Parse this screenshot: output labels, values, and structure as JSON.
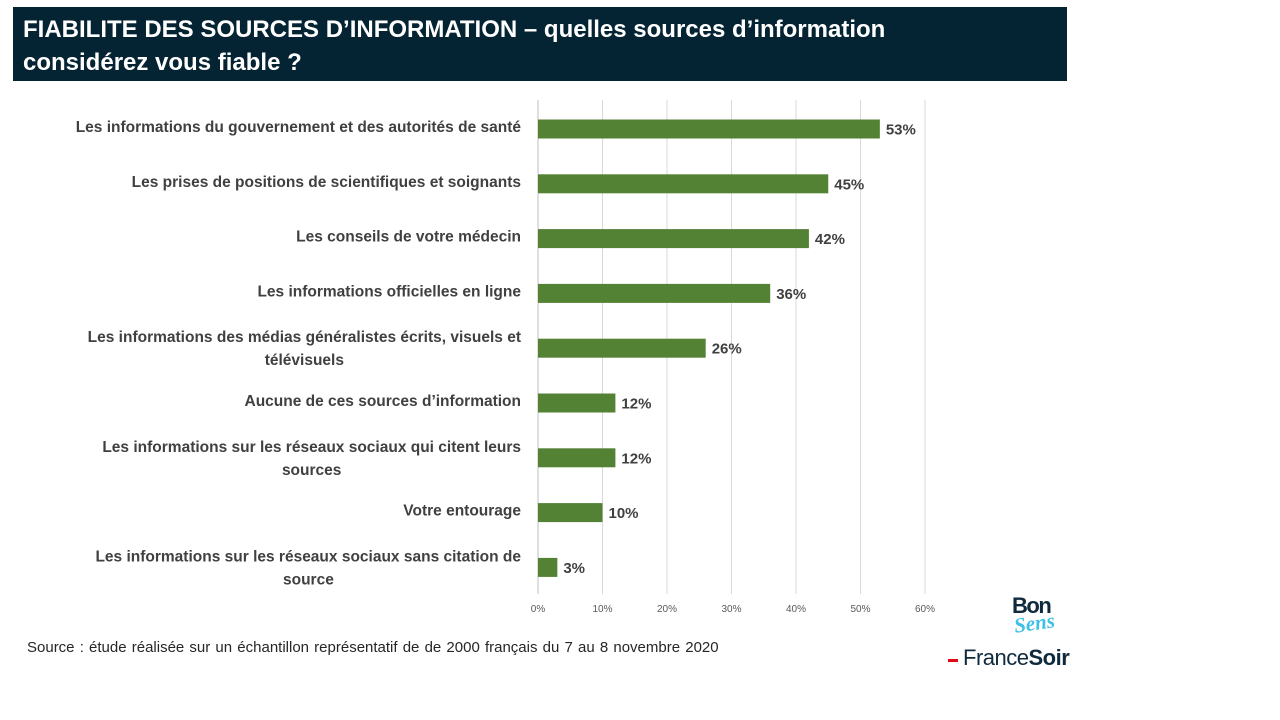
{
  "header": {
    "title_line1": "FIABILITE DES SOURCES D’INFORMATION – quelles sources d’information",
    "title_line2": "considérez vous fiable ?"
  },
  "chart_data": {
    "type": "bar",
    "orientation": "horizontal",
    "categories": [
      "Les informations du gouvernement et des autorités de santé",
      "Les prises de positions de scientifiques et soignants",
      "Les conseils de votre médecin",
      "Les informations officielles en ligne",
      "Les informations des médias généralistes écrits, visuels et télévisuels",
      "Aucune de ces sources d’information",
      "Les informations sur les réseaux sociaux qui citent leurs sources",
      "Votre entourage",
      "Les informations sur les réseaux sociaux sans citation de source"
    ],
    "category_lines": [
      [
        "Les informations du gouvernement et des autorités de santé"
      ],
      [
        "Les prises de positions de scientifiques et soignants"
      ],
      [
        "Les conseils de votre médecin"
      ],
      [
        "Les informations officielles en ligne"
      ],
      [
        "Les informations des médias généralistes écrits, visuels et",
        "télévisuels"
      ],
      [
        "Aucune de ces sources d’information"
      ],
      [
        "Les informations sur les réseaux sociaux qui citent leurs",
        "sources"
      ],
      [
        "Votre entourage"
      ],
      [
        "Les informations sur les réseaux sociaux sans citation de",
        "source"
      ]
    ],
    "values": [
      53,
      45,
      42,
      36,
      26,
      12,
      12,
      10,
      3
    ],
    "value_labels": [
      "53%",
      "45%",
      "42%",
      "36%",
      "26%",
      "12%",
      "12%",
      "10%",
      "3%"
    ],
    "x_ticks": [
      "0%",
      "10%",
      "20%",
      "30%",
      "40%",
      "50%",
      "60%"
    ],
    "xlim": [
      0,
      60
    ],
    "grid": true,
    "bar_color": "#548235"
  },
  "footer": {
    "source": "Source : étude réalisée sur un échantillon représentatif de de 2000 français du 7 au 8 novembre 2020"
  },
  "logos": {
    "bonsens_bon": "Bon",
    "bonsens_sens": "Sens",
    "francesoir_france": "France",
    "francesoir_soir": "Soir"
  }
}
